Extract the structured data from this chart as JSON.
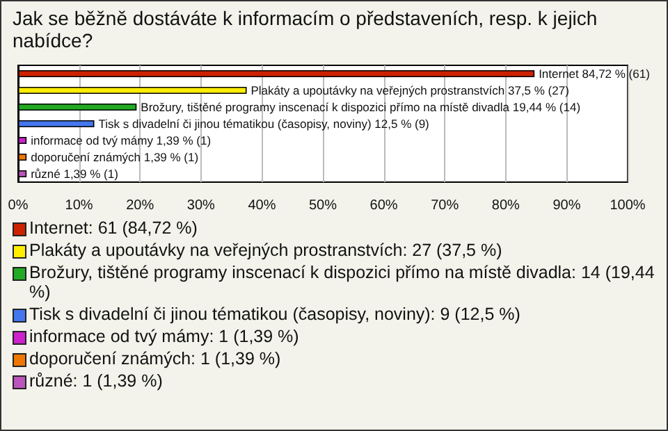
{
  "chart_data": {
    "type": "bar",
    "orientation": "horizontal",
    "title": "Jak se běžně dostáváte k informacím o představeních, resp. k jejich nabídce?",
    "categories": [
      null,
      null,
      null,
      null,
      null,
      null,
      null
    ],
    "values": [
      84.72,
      37.5,
      19.44,
      12.5,
      1.39,
      1.39,
      1.39
    ],
    "colors": [
      "#cc2200",
      "#ffee00",
      "#22aa22",
      "#4477ee",
      "#cc22cc",
      "#ee7700",
      "#bb55bb"
    ],
    "value_labels": [
      "Internet 84,72 % (61)",
      "Plakáty a upoutávky na veřejných prostranstvích 37,5 % (27)",
      "Brožury, tištěné programy inscenací k dispozici přímo na místě divadla 19,44 % (14)",
      "Tisk s divadelní či jinou tématikou (časopisy, noviny) 12,5 % (9)",
      "informace od tvý mámy 1,39 % (1)",
      "doporučení známých 1,39 % (1)",
      "různé 1,39 % (1)"
    ],
    "xlim": [
      0,
      100
    ],
    "xticks": [
      {
        "value": 0,
        "label": "0%"
      },
      {
        "value": 10,
        "label": "10%"
      },
      {
        "value": 20,
        "label": "20%"
      },
      {
        "value": 30,
        "label": "30%"
      },
      {
        "value": 40,
        "label": "40%"
      },
      {
        "value": 50,
        "label": "50%"
      },
      {
        "value": 60,
        "label": "60%"
      },
      {
        "value": 70,
        "label": "70%"
      },
      {
        "value": 80,
        "label": "80%"
      },
      {
        "value": 90,
        "label": "90%"
      },
      {
        "value": 100,
        "label": "100%"
      }
    ],
    "grid": "x",
    "annotations": [
      "Internet: 61 (84,72 %)",
      "Plakáty a upoutávky na veřejných prostranstvích: 27 (37,5 %)",
      "Brožury, tištěné programy inscenací k dispozici přímo na místě divadla: 14 (19,44 %)",
      "Tisk s divadelní či jinou tématikou (časopisy, noviny): 9 (12,5 %)",
      "informace od tvý mámy: 1 (1,39 %)",
      "doporučení známých: 1 (1,39 %)",
      "různé: 1 (1,39 %)"
    ]
  }
}
